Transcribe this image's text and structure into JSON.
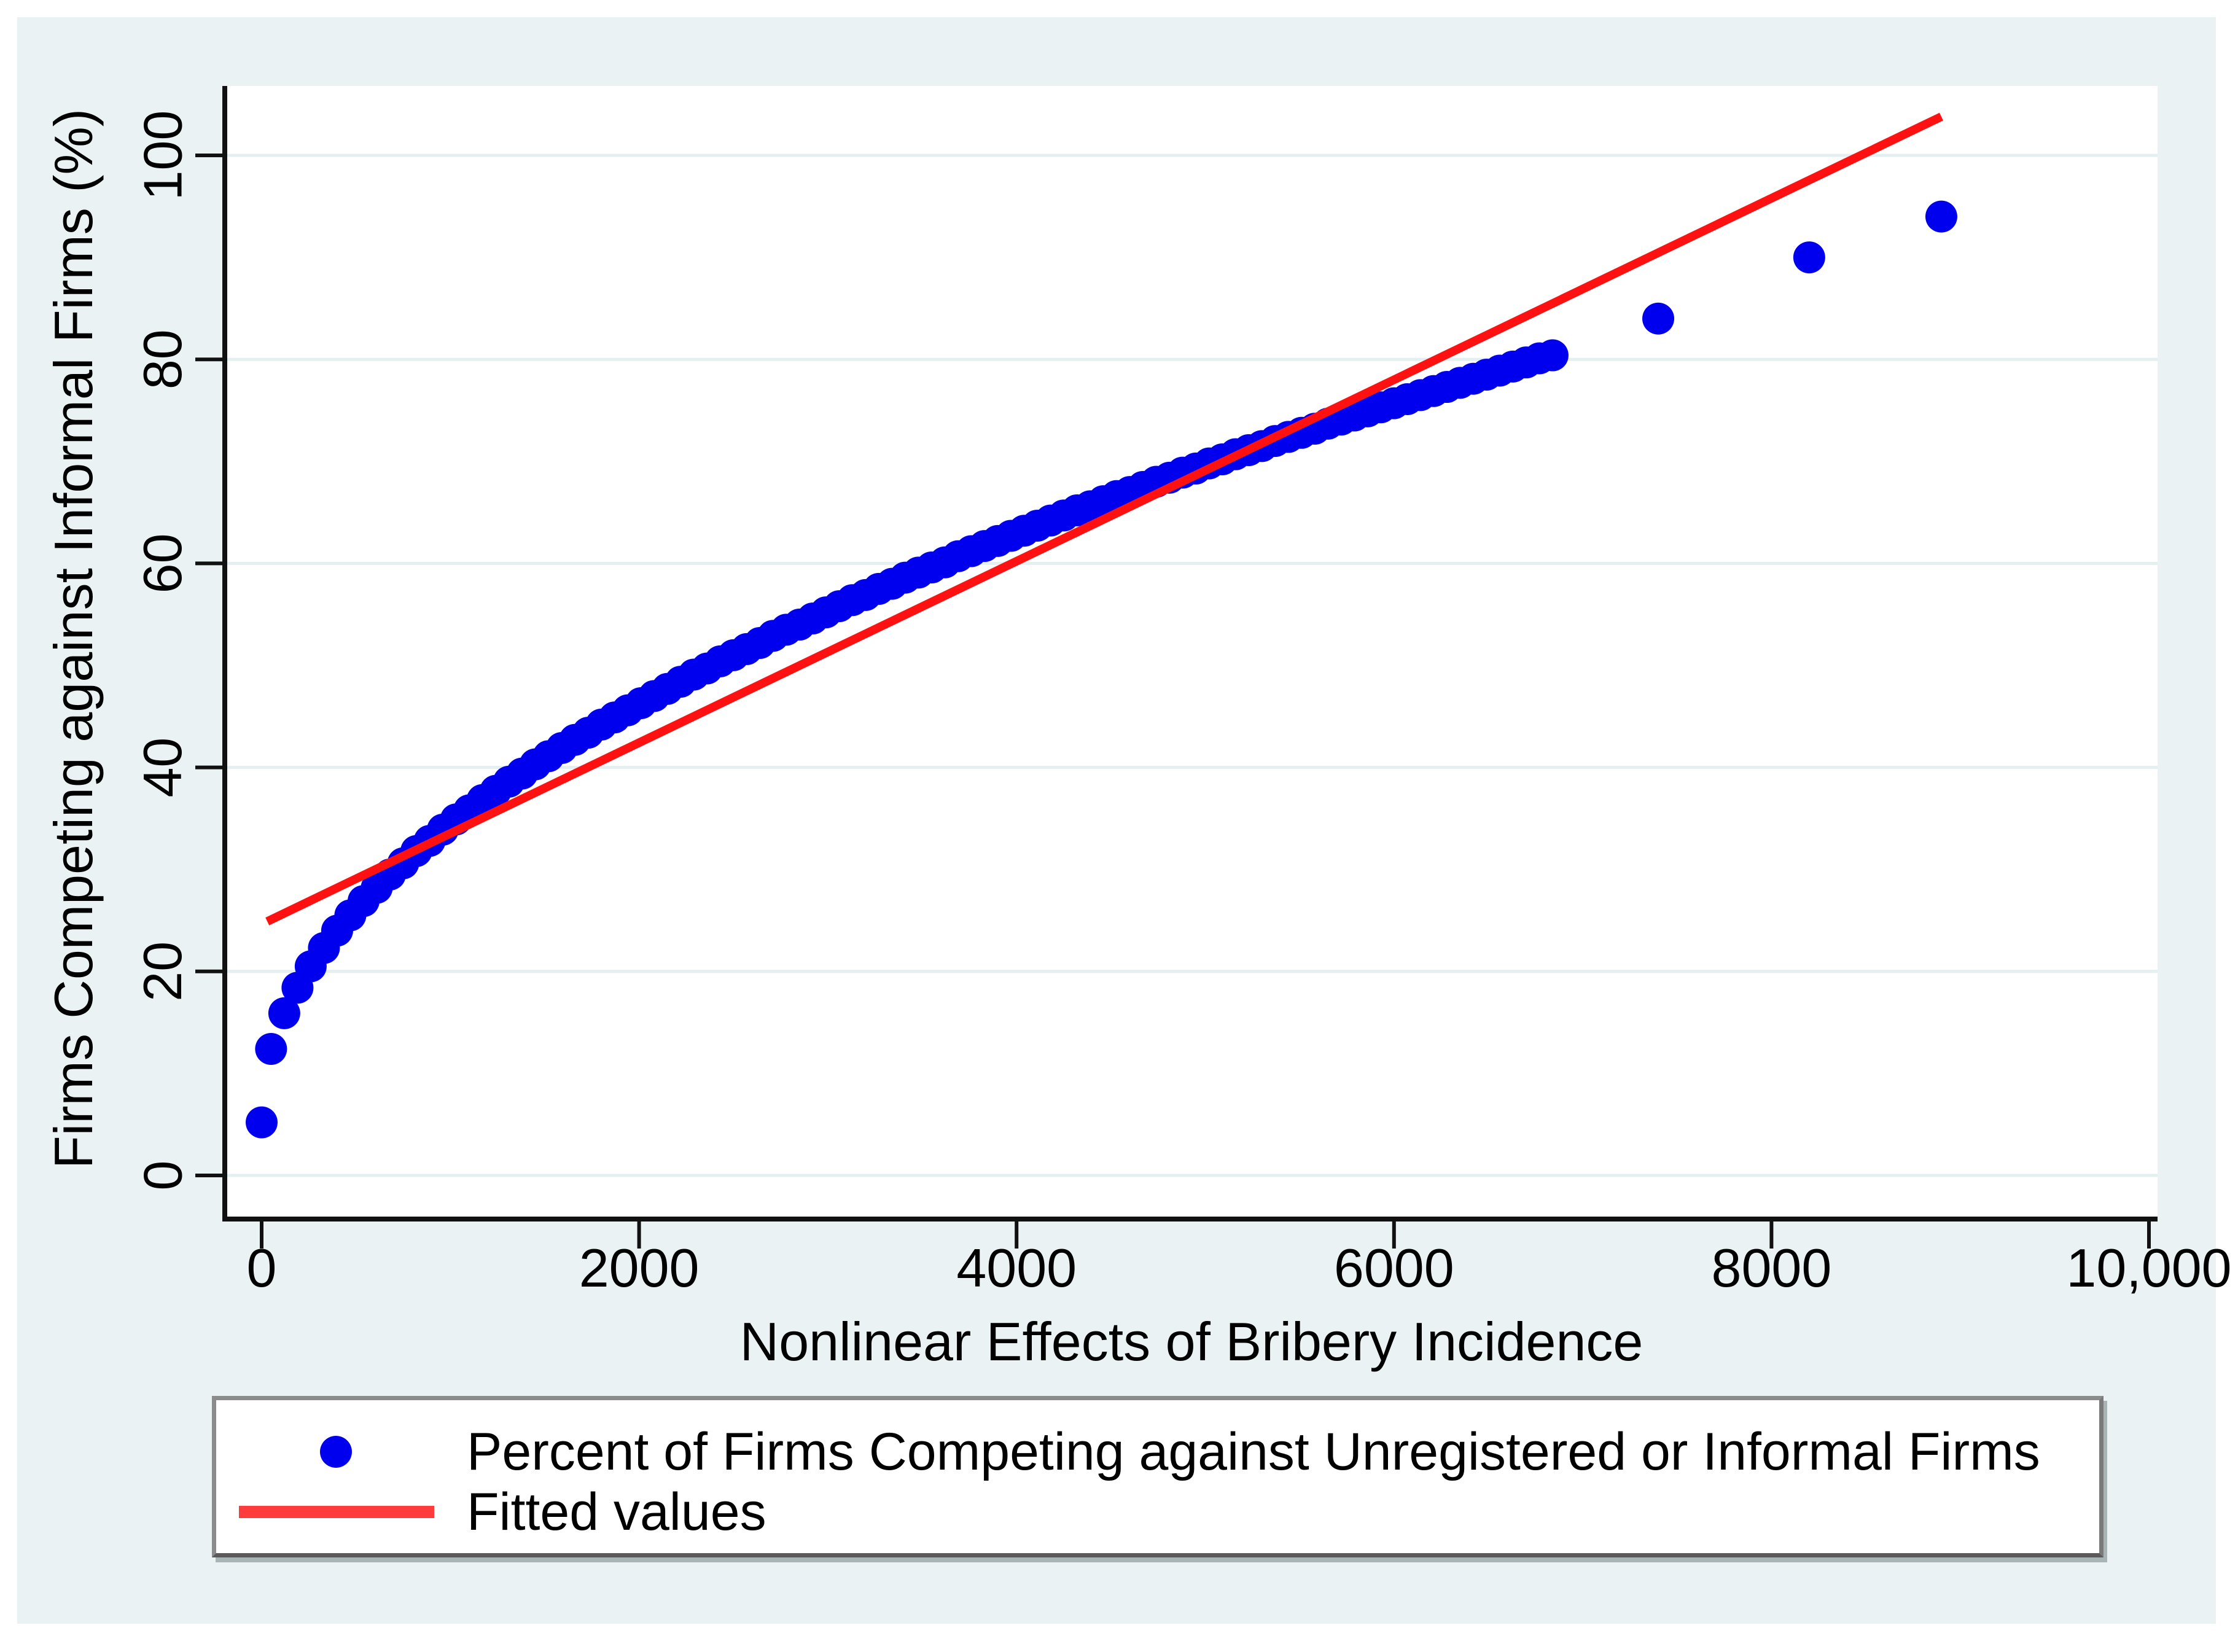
{
  "figure": {
    "background_color": "#eaf2f3",
    "plot_background_color": "#ffffff",
    "gridline_color": "#e4eff1",
    "axis_color": "#111111"
  },
  "y_axis": {
    "title": "Firms Competing against Informal Firms (%)",
    "tick_labels": [
      "0",
      "20",
      "40",
      "60",
      "80",
      "100"
    ],
    "tick_values": [
      0,
      20,
      40,
      60,
      80,
      100
    ]
  },
  "x_axis": {
    "title": "Nonlinear Effects of Bribery Incidence",
    "tick_labels": [
      "0",
      "2000",
      "4000",
      "6000",
      "8000",
      "10,000"
    ],
    "tick_values": [
      0,
      2000,
      4000,
      6000,
      8000,
      10000
    ]
  },
  "legend": {
    "scatter_label": "Percent of Firms Competing against Unregistered or Informal Firms",
    "line_label": "Fitted values",
    "scatter_color": "#0000ee",
    "line_color": "#ff3b3b"
  },
  "chart_data": {
    "type": "scatter",
    "title": "",
    "xlabel": "Nonlinear Effects of Bribery Incidence",
    "ylabel": "Firms Competing against Informal Firms (%)",
    "xlim": [
      -200,
      10200
    ],
    "ylim": [
      -4,
      107
    ],
    "grid": "horizontal-only",
    "legend_position": "bottom",
    "series": [
      {
        "name": "Percent of Firms Competing against Unregistered or Informal Firms",
        "kind": "scatter",
        "color": "#0000ee",
        "marker_radius_px": 26,
        "points": [
          [
            0,
            5.2
          ],
          [
            50,
            12.4
          ],
          [
            120,
            15.9
          ],
          [
            190,
            18.4
          ],
          [
            260,
            20.5
          ],
          [
            330,
            22.3
          ],
          [
            400,
            24.0
          ],
          [
            470,
            25.5
          ],
          [
            540,
            26.9
          ],
          [
            610,
            28.2
          ],
          [
            680,
            29.5
          ],
          [
            750,
            30.6
          ],
          [
            820,
            31.8
          ],
          [
            890,
            32.8
          ],
          [
            960,
            33.9
          ],
          [
            1030,
            34.9
          ],
          [
            1100,
            35.8
          ],
          [
            1170,
            36.8
          ],
          [
            1240,
            37.7
          ],
          [
            1310,
            38.6
          ],
          [
            1380,
            39.4
          ],
          [
            1450,
            40.3
          ],
          [
            1520,
            41.1
          ],
          [
            1590,
            41.9
          ],
          [
            1660,
            42.7
          ],
          [
            1730,
            43.4
          ],
          [
            1800,
            44.2
          ],
          [
            1870,
            44.9
          ],
          [
            1940,
            45.6
          ],
          [
            2010,
            46.3
          ],
          [
            2080,
            47.0
          ],
          [
            2150,
            47.7
          ],
          [
            2220,
            48.4
          ],
          [
            2290,
            49.1
          ],
          [
            2360,
            49.7
          ],
          [
            2430,
            50.4
          ],
          [
            2500,
            51.0
          ],
          [
            2570,
            51.6
          ],
          [
            2640,
            52.2
          ],
          [
            2710,
            52.9
          ],
          [
            2780,
            53.5
          ],
          [
            2850,
            54.0
          ],
          [
            2920,
            54.6
          ],
          [
            2990,
            55.2
          ],
          [
            3060,
            55.8
          ],
          [
            3130,
            56.4
          ],
          [
            3200,
            56.9
          ],
          [
            3270,
            57.5
          ],
          [
            3340,
            58.0
          ],
          [
            3410,
            58.6
          ],
          [
            3480,
            59.1
          ],
          [
            3550,
            59.6
          ],
          [
            3620,
            60.1
          ],
          [
            3690,
            60.7
          ],
          [
            3760,
            61.2
          ],
          [
            3830,
            61.7
          ],
          [
            3900,
            62.2
          ],
          [
            3970,
            62.7
          ],
          [
            4040,
            63.2
          ],
          [
            4110,
            63.7
          ],
          [
            4180,
            64.2
          ],
          [
            4250,
            64.7
          ],
          [
            4320,
            65.2
          ],
          [
            4390,
            65.6
          ],
          [
            4460,
            66.1
          ],
          [
            4530,
            66.6
          ],
          [
            4600,
            67.0
          ],
          [
            4670,
            67.5
          ],
          [
            4740,
            68.0
          ],
          [
            4810,
            68.4
          ],
          [
            4880,
            68.9
          ],
          [
            4950,
            69.3
          ],
          [
            5020,
            69.8
          ],
          [
            5090,
            70.2
          ],
          [
            5160,
            70.7
          ],
          [
            5230,
            71.1
          ],
          [
            5300,
            71.5
          ],
          [
            5370,
            72.0
          ],
          [
            5440,
            72.4
          ],
          [
            5510,
            72.8
          ],
          [
            5580,
            73.2
          ],
          [
            5650,
            73.7
          ],
          [
            5720,
            74.1
          ],
          [
            5790,
            74.5
          ],
          [
            5860,
            74.9
          ],
          [
            5930,
            75.3
          ],
          [
            6000,
            75.7
          ],
          [
            6070,
            76.1
          ],
          [
            6140,
            76.5
          ],
          [
            6210,
            76.9
          ],
          [
            6280,
            77.3
          ],
          [
            6350,
            77.7
          ],
          [
            6420,
            78.1
          ],
          [
            6490,
            78.5
          ],
          [
            6560,
            78.9
          ],
          [
            6630,
            79.3
          ],
          [
            6700,
            79.7
          ],
          [
            6770,
            80.1
          ],
          [
            6840,
            80.4
          ],
          [
            7400,
            84
          ],
          [
            8200,
            90
          ],
          [
            8900,
            94
          ]
        ]
      },
      {
        "name": "Fitted values",
        "kind": "line",
        "color": "#ff1111",
        "stroke_px": 14,
        "points": [
          [
            30,
            24.9
          ],
          [
            8900,
            103.8
          ]
        ]
      }
    ]
  }
}
